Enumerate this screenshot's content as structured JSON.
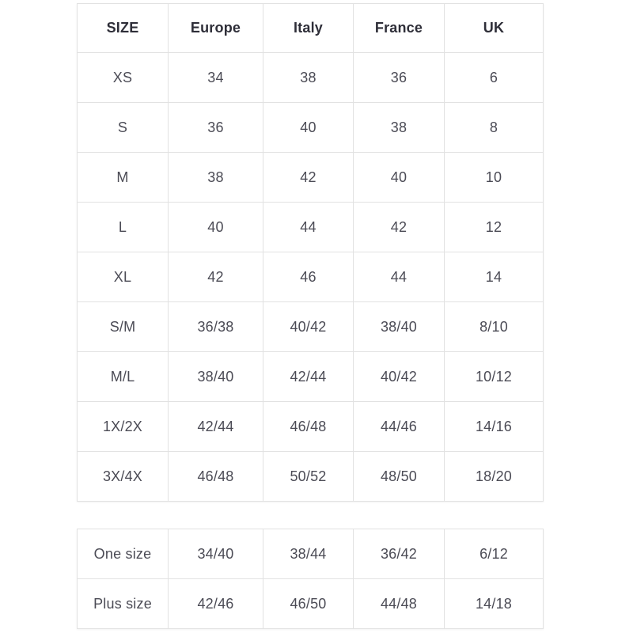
{
  "colors": {
    "background": "#ffffff",
    "border": "#e2e2e2",
    "heading_text": "#2e2e38",
    "cell_text": "#4b4b55"
  },
  "size_chart": {
    "headers": [
      "SIZE",
      "Europe",
      "Italy",
      "France",
      "UK"
    ],
    "rows": [
      [
        "XS",
        "34",
        "38",
        "36",
        "6"
      ],
      [
        "S",
        "36",
        "40",
        "38",
        "8"
      ],
      [
        "M",
        "38",
        "42",
        "40",
        "10"
      ],
      [
        "L",
        "40",
        "44",
        "42",
        "12"
      ],
      [
        "XL",
        "42",
        "46",
        "44",
        "14"
      ],
      [
        "S/M",
        "36/38",
        "40/42",
        "38/40",
        "8/10"
      ],
      [
        "M/L",
        "38/40",
        "42/44",
        "40/42",
        "10/12"
      ],
      [
        "1X/2X",
        "42/44",
        "46/48",
        "44/46",
        "14/16"
      ],
      [
        "3X/4X",
        "46/48",
        "50/52",
        "48/50",
        "18/20"
      ]
    ]
  },
  "special_sizes": {
    "rows": [
      [
        "One size",
        "34/40",
        "38/44",
        "36/42",
        "6/12"
      ],
      [
        "Plus size",
        "42/46",
        "46/50",
        "44/48",
        "14/18"
      ]
    ]
  }
}
